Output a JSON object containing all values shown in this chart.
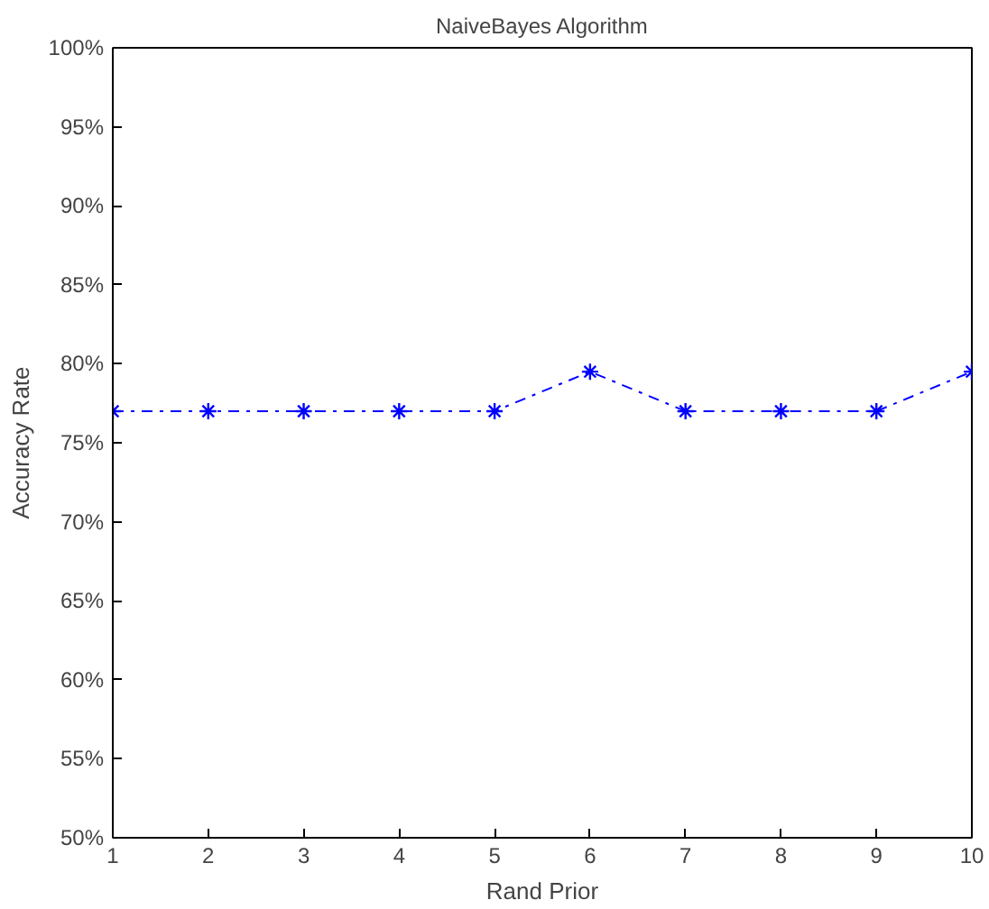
{
  "chart_data": {
    "type": "line",
    "title": "NaiveBayes Algorithm",
    "xlabel": "Rand Prior",
    "ylabel": "Accuracy Rate",
    "x": [
      1,
      2,
      3,
      4,
      5,
      6,
      7,
      8,
      9,
      10
    ],
    "series": [
      {
        "color": "#0000ff",
        "values": [
          77,
          77,
          77,
          77,
          77,
          79.5,
          77,
          77,
          77,
          79.5
        ]
      }
    ],
    "xlim": [
      1,
      10
    ],
    "xticks": [
      1,
      2,
      3,
      4,
      5,
      6,
      7,
      8,
      9,
      10
    ],
    "ylim": [
      50,
      100
    ],
    "yticks": [
      {
        "value": 50,
        "label": "50%"
      },
      {
        "value": 55,
        "label": "55%"
      },
      {
        "value": 60,
        "label": "60%"
      },
      {
        "value": 65,
        "label": "65%"
      },
      {
        "value": 70,
        "label": "70%"
      },
      {
        "value": 75,
        "label": "75%"
      },
      {
        "value": 80,
        "label": "80%"
      },
      {
        "value": 85,
        "label": "85%"
      },
      {
        "value": 90,
        "label": "90%"
      },
      {
        "value": 95,
        "label": "95%"
      },
      {
        "value": 100,
        "label": "100%"
      }
    ],
    "marker": "cross",
    "line_style": "dashed",
    "grid": false
  }
}
